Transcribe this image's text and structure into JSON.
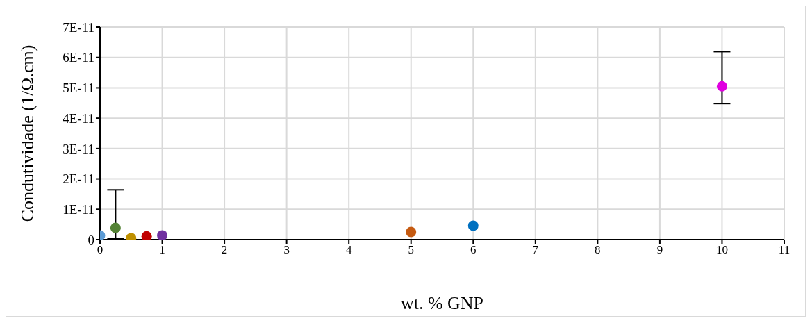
{
  "chart_data": {
    "type": "scatter",
    "xlabel": "wt. % GNP",
    "ylabel": "Condutividade (1/Ω.cm)",
    "x": [
      0,
      0.25,
      0.5,
      0.75,
      1,
      5,
      6,
      10
    ],
    "values": [
      1.35e-12,
      3.9e-12,
      5e-13,
      1.1e-12,
      1.4e-12,
      2.5e-12,
      4.6e-12,
      5.05e-11
    ],
    "colors": [
      "#5b9bd5",
      "#548235",
      "#bf9000",
      "#c00000",
      "#7030a0",
      "#c55a11",
      "#0070c0",
      "#e000e0"
    ],
    "errors": [
      null,
      [
        4e-13,
        1.64e-11
      ],
      null,
      null,
      null,
      null,
      null,
      [
        4.48e-11,
        6.19e-11
      ]
    ],
    "xlim": [
      0,
      11
    ],
    "xticks": [
      0,
      1,
      2,
      3,
      4,
      5,
      6,
      7,
      8,
      9,
      10,
      11
    ],
    "ylim": [
      0,
      7e-11
    ],
    "yticks": [
      0,
      {
        "value": 1e-11,
        "label": "1E-11"
      },
      {
        "value": 2e-11,
        "label": "2E-11"
      },
      {
        "value": 3e-11,
        "label": "3E-11"
      },
      {
        "value": 4e-11,
        "label": "4E-11"
      },
      {
        "value": 5e-11,
        "label": "5E-11"
      },
      {
        "value": 6e-11,
        "label": "6E-11"
      },
      {
        "value": 7e-11,
        "label": "7E-11"
      }
    ],
    "grid": true,
    "marker": "circle",
    "legend": false
  }
}
